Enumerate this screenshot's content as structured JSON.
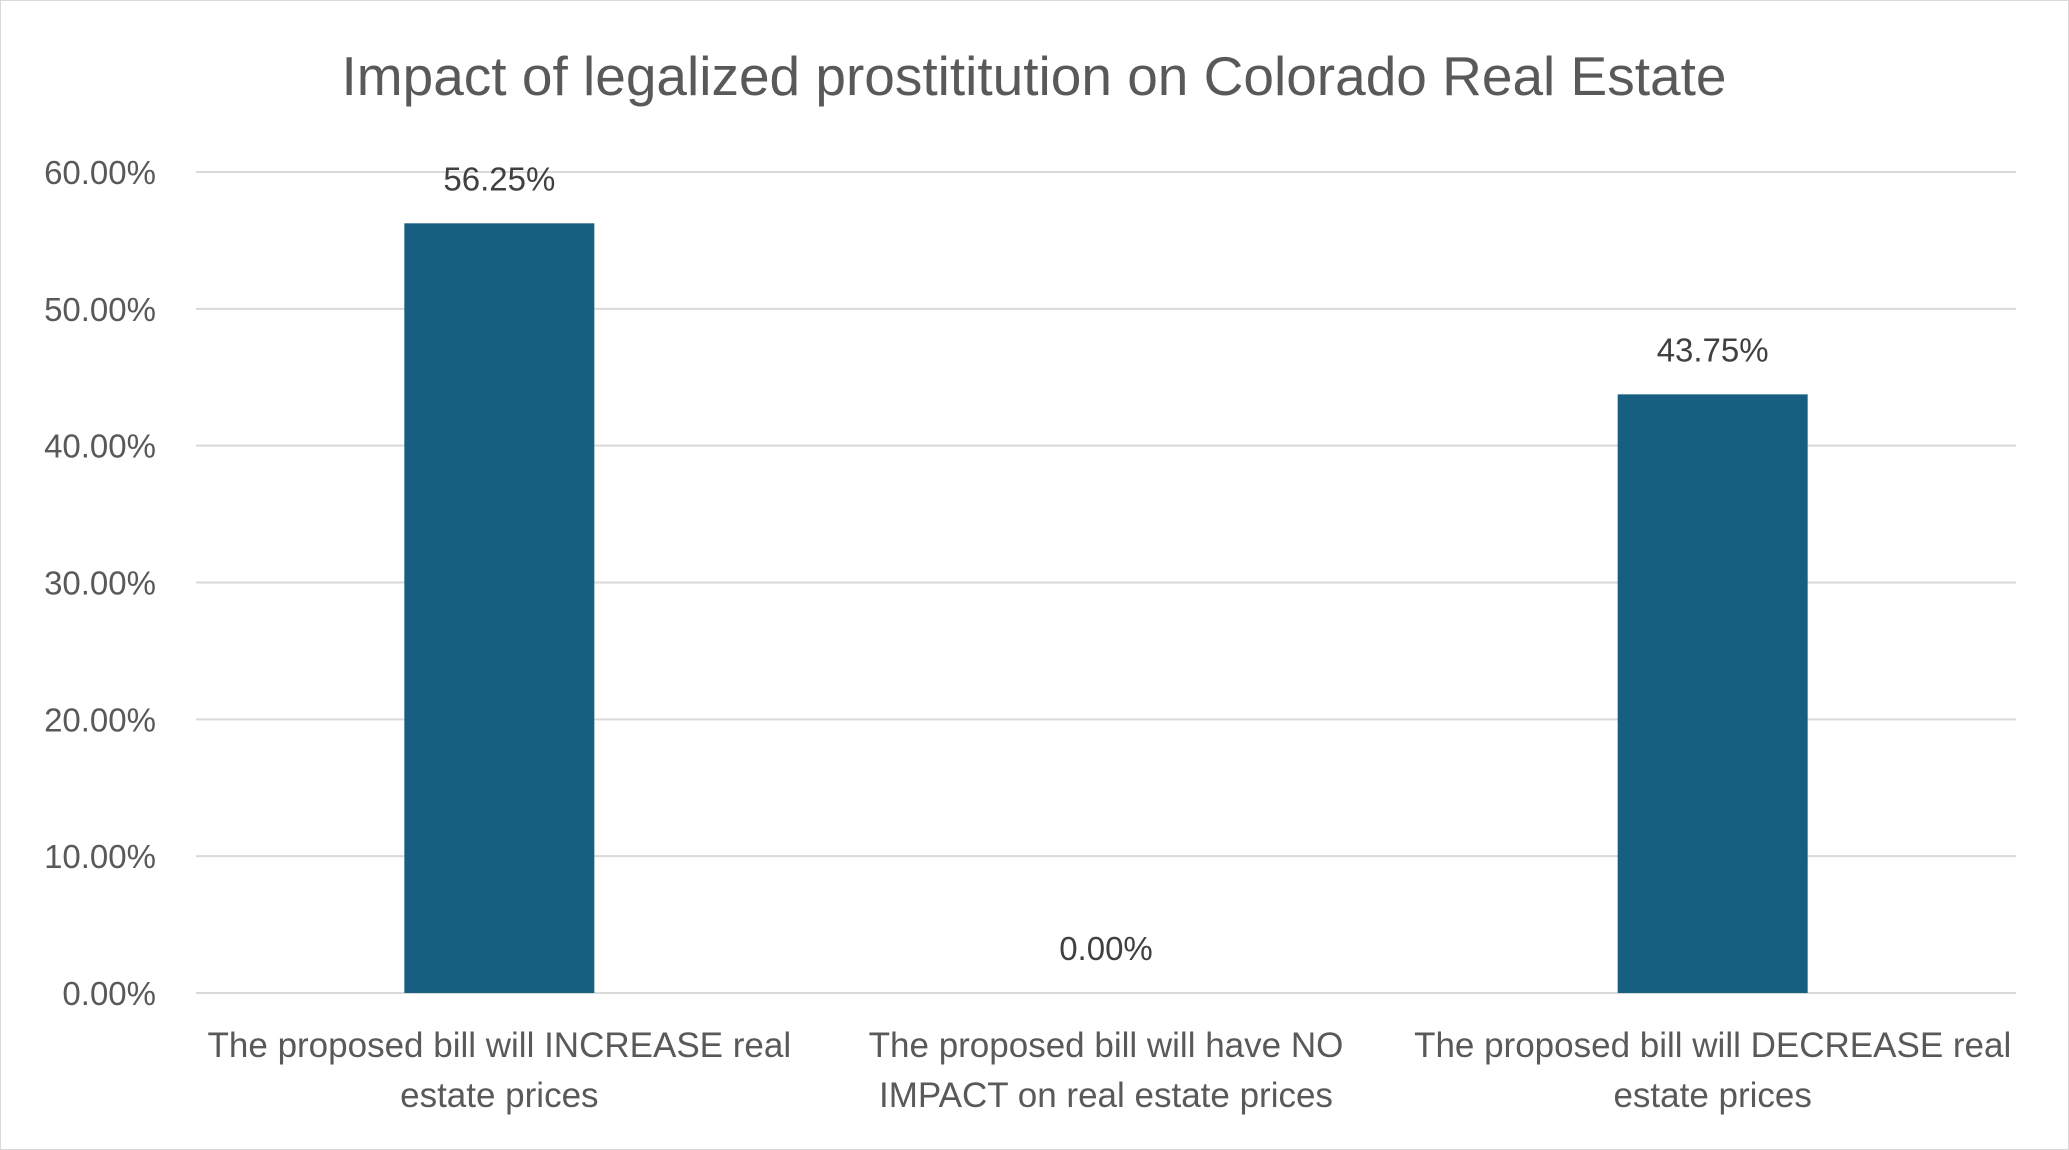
{
  "chart_data": {
    "type": "bar",
    "title": "Impact of legalized prostititution on Colorado Real Estate",
    "xlabel": "",
    "ylabel": "",
    "categories": [
      [
        "The proposed bill will INCREASE real",
        "estate prices"
      ],
      [
        "The proposed bill will have NO",
        "IMPACT on real estate prices"
      ],
      [
        "The proposed bill will DECREASE real",
        "estate prices"
      ]
    ],
    "values": [
      56.25,
      0.0,
      43.75
    ],
    "data_labels": [
      "56.25%",
      "0.00%",
      "43.75%"
    ],
    "ylim": [
      0,
      60
    ],
    "yticks": [
      0,
      10,
      20,
      30,
      40,
      50,
      60
    ],
    "ytick_labels": [
      "0.00%",
      "10.00%",
      "20.00%",
      "30.00%",
      "40.00%",
      "50.00%",
      "60.00%"
    ],
    "grid": true,
    "legend": "none",
    "colors": {
      "bar": "#165f81",
      "grid": "#d9d9d9",
      "text": "#595959"
    }
  }
}
